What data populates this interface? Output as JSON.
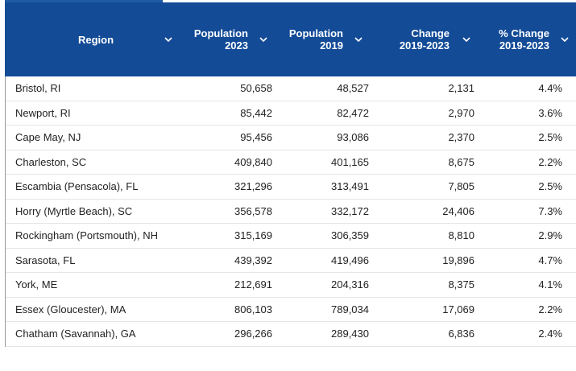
{
  "columns": [
    {
      "key": "region",
      "label": "Region"
    },
    {
      "key": "pop2023",
      "label": "Population\n2023"
    },
    {
      "key": "pop2019",
      "label": "Population\n2019"
    },
    {
      "key": "change",
      "label": "Change\n2019-2023"
    },
    {
      "key": "pct_change",
      "label": "% Change\n2019-2023"
    }
  ],
  "rows": [
    {
      "region": "Bristol, RI",
      "pop2023": "50,658",
      "pop2019": "48,527",
      "change": "2,131",
      "pct_change": "4.4%"
    },
    {
      "region": "Newport, RI",
      "pop2023": "85,442",
      "pop2019": "82,472",
      "change": "2,970",
      "pct_change": "3.6%"
    },
    {
      "region": "Cape May, NJ",
      "pop2023": "95,456",
      "pop2019": "93,086",
      "change": "2,370",
      "pct_change": "2.5%"
    },
    {
      "region": "Charleston, SC",
      "pop2023": "409,840",
      "pop2019": "401,165",
      "change": "8,675",
      "pct_change": "2.2%"
    },
    {
      "region": "Escambia (Pensacola), FL",
      "pop2023": "321,296",
      "pop2019": "313,491",
      "change": "7,805",
      "pct_change": "2.5%"
    },
    {
      "region": "Horry (Myrtle Beach), SC",
      "pop2023": "356,578",
      "pop2019": "332,172",
      "change": "24,406",
      "pct_change": "7.3%"
    },
    {
      "region": "Rockingham (Portsmouth), NH",
      "pop2023": "315,169",
      "pop2019": "306,359",
      "change": "8,810",
      "pct_change": "2.9%"
    },
    {
      "region": "Sarasota, FL",
      "pop2023": "439,392",
      "pop2019": "419,496",
      "change": "19,896",
      "pct_change": "4.7%"
    },
    {
      "region": "York, ME",
      "pop2023": "212,691",
      "pop2019": "204,316",
      "change": "8,375",
      "pct_change": "4.1%"
    },
    {
      "region": "Essex (Gloucester), MA",
      "pop2023": "806,103",
      "pop2019": "789,034",
      "change": "17,069",
      "pct_change": "2.2%"
    },
    {
      "region": "Chatham (Savannah), GA",
      "pop2023": "296,266",
      "pop2019": "289,430",
      "change": "6,836",
      "pct_change": "2.4%"
    }
  ],
  "icons": {
    "sort": "chevron-down-icon"
  },
  "colors": {
    "header_bg": "#134b97",
    "header_text": "#ffffff",
    "row_text": "#222222"
  }
}
